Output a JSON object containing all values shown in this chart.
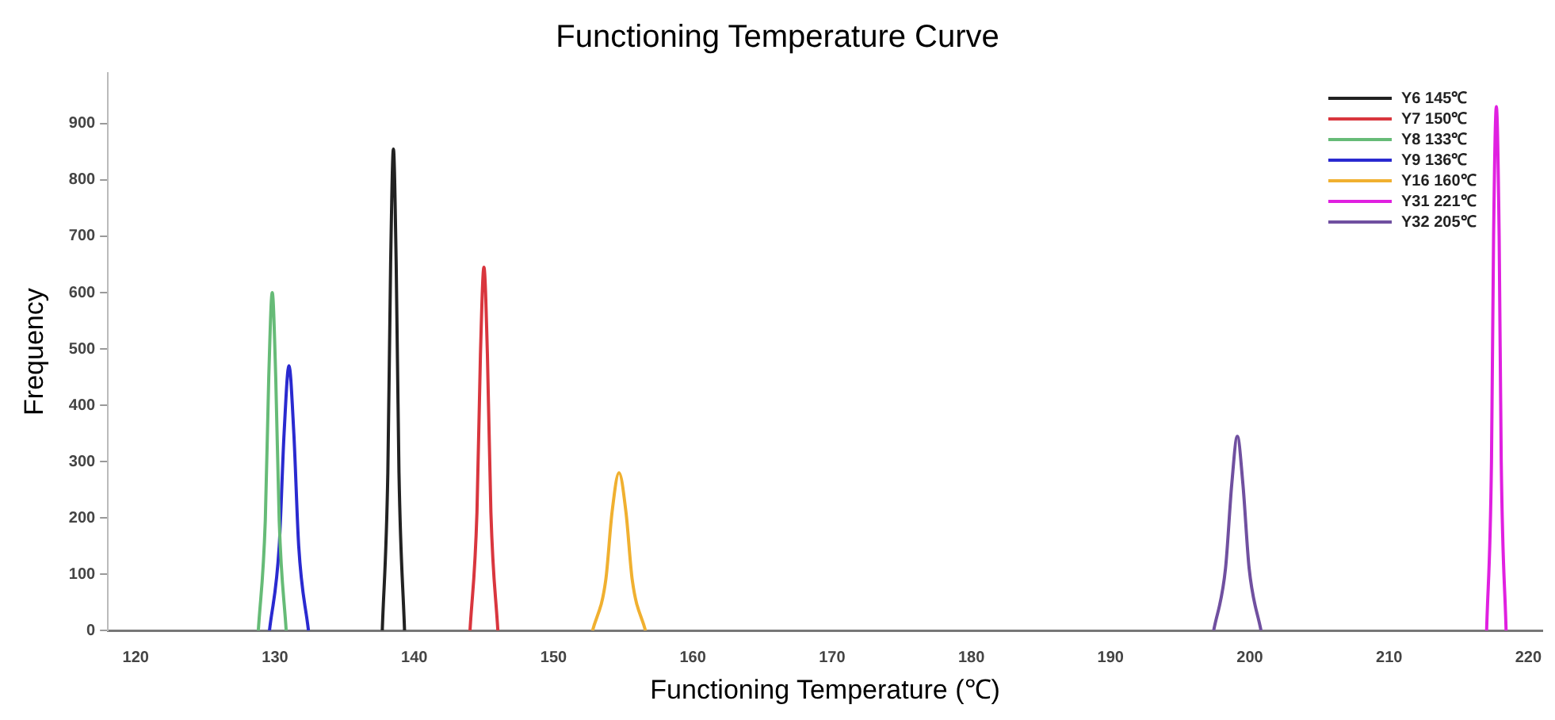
{
  "chart_data": {
    "type": "line",
    "title": "Functioning Temperature Curve",
    "xlabel": "Functioning Temperature (℃)",
    "ylabel": "Frequency",
    "xlim": [
      118,
      221
    ],
    "xticks": [
      120,
      130,
      140,
      150,
      160,
      170,
      180,
      190,
      200,
      210,
      220
    ],
    "ylim": [
      0,
      990
    ],
    "yticks": [
      0,
      100,
      200,
      300,
      400,
      500,
      600,
      700,
      800,
      900
    ],
    "grid": false,
    "legend": "top right",
    "marker": "none",
    "series": [
      {
        "name": "Y6 145℃",
        "color": "#222222",
        "x": [
          137.7,
          138.1,
          138.3,
          138.5,
          138.7,
          138.9,
          139.3
        ],
        "values": [
          0,
          280,
          650,
          855,
          650,
          280,
          0
        ]
      },
      {
        "name": "Y7 150℃",
        "color": "#d9363e",
        "x": [
          144.0,
          144.5,
          144.75,
          145.0,
          145.25,
          145.5,
          146.0
        ],
        "values": [
          0,
          210,
          490,
          645,
          490,
          210,
          0
        ]
      },
      {
        "name": "Y8 133℃",
        "color": "#66bb77",
        "x": [
          128.8,
          129.3,
          129.55,
          129.8,
          130.05,
          130.3,
          130.8
        ],
        "values": [
          0,
          195,
          450,
          600,
          450,
          195,
          0
        ]
      },
      {
        "name": "Y9 136℃",
        "color": "#2a2ad0",
        "x": [
          129.6,
          130.3,
          130.65,
          131.0,
          131.35,
          131.7,
          132.4
        ],
        "values": [
          0,
          150,
          350,
          470,
          350,
          150,
          0
        ]
      },
      {
        "name": "Y16 160℃",
        "color": "#f0b030",
        "x": [
          152.8,
          153.75,
          154.2,
          154.7,
          155.2,
          155.65,
          156.6
        ],
        "values": [
          0,
          90,
          210,
          280,
          210,
          90,
          0
        ]
      },
      {
        "name": "Y31 221℃",
        "color": "#e020e0",
        "x": [
          217.0,
          217.35,
          217.5,
          217.7,
          217.9,
          218.05,
          218.4
        ],
        "values": [
          0,
          300,
          700,
          930,
          700,
          300,
          0
        ]
      },
      {
        "name": "Y32 205℃",
        "color": "#7050a0",
        "x": [
          197.4,
          198.25,
          198.7,
          199.1,
          199.5,
          199.95,
          200.8
        ],
        "values": [
          0,
          110,
          260,
          345,
          260,
          110,
          0
        ]
      }
    ]
  }
}
